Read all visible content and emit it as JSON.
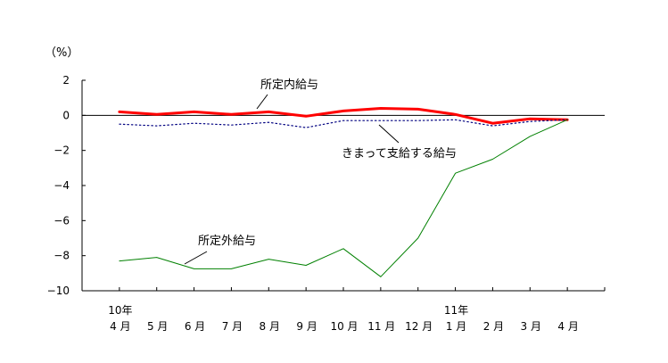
{
  "chart_data": {
    "type": "line",
    "ylabel": "（%）",
    "ylim": [
      -10,
      2
    ],
    "y_ticks": [
      "2",
      "0",
      "−2",
      "−4",
      "−6",
      "−8",
      "−10"
    ],
    "y_tick_values": [
      2,
      0,
      -2,
      -4,
      -6,
      -8,
      -10
    ],
    "categories": [
      "4 月",
      "5 月",
      "6 月",
      "7 月",
      "8 月",
      "9 月",
      "10 月",
      "11 月",
      "12 月",
      "1 月",
      "2 月",
      "3 月",
      "4 月"
    ],
    "year_labels": [
      {
        "index": 0,
        "label": "10年"
      },
      {
        "index": 9,
        "label": "11年"
      }
    ],
    "grid": false,
    "zero_line": true,
    "series": [
      {
        "name": "所定内給与",
        "color": "#ff0000",
        "style": "thick-solid",
        "values": [
          0.2,
          0.05,
          0.2,
          0.05,
          0.2,
          -0.05,
          0.25,
          0.4,
          0.35,
          0.05,
          -0.45,
          -0.2,
          -0.25
        ]
      },
      {
        "name": "きまって支給する給与",
        "color": "#000080",
        "style": "dotted",
        "values": [
          -0.5,
          -0.6,
          -0.45,
          -0.55,
          -0.4,
          -0.7,
          -0.3,
          -0.3,
          -0.3,
          -0.25,
          -0.6,
          -0.35,
          -0.25
        ]
      },
      {
        "name": "所定外給与",
        "color": "#008000",
        "style": "thin-solid",
        "values": [
          -8.3,
          -8.1,
          -8.75,
          -8.75,
          -8.2,
          -8.55,
          -7.6,
          -9.2,
          -7.0,
          -3.3,
          -2.5,
          -1.2,
          -0.25
        ]
      }
    ]
  }
}
